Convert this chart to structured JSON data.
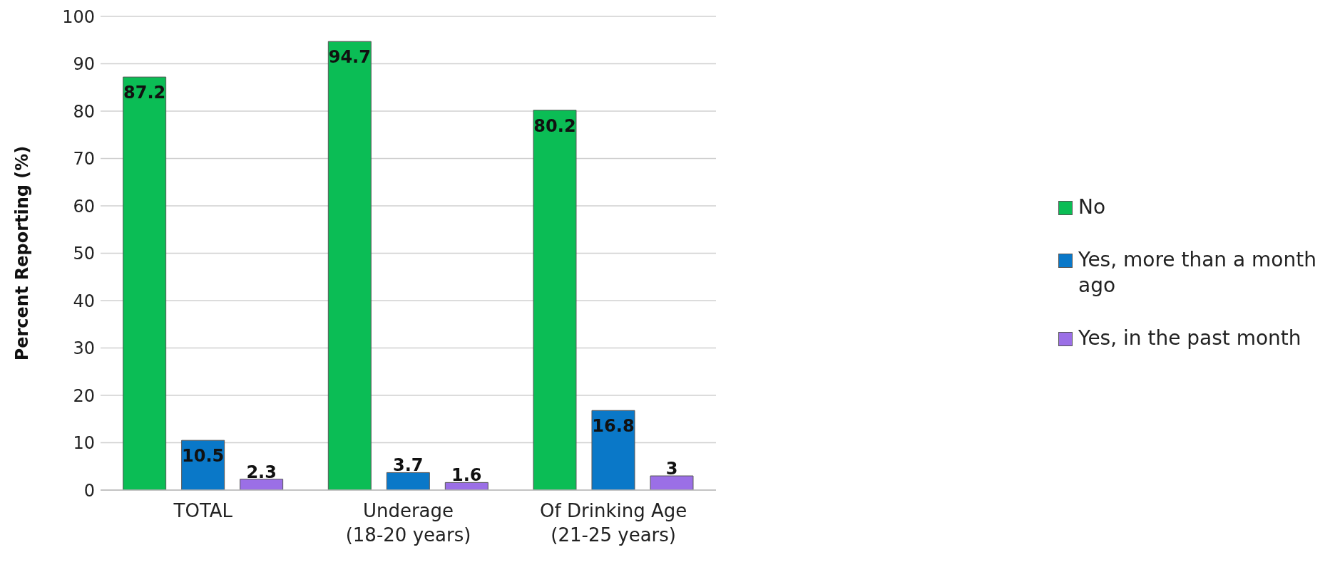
{
  "chart_data": {
    "type": "bar",
    "ylabel": "Percent Reporting (%)",
    "categories": [
      "TOTAL",
      "Underage (18-20 years)",
      "Of Drinking Age (21-25 years)"
    ],
    "series": [
      {
        "name": "No",
        "color": "#0bbd55",
        "values": [
          87.2,
          94.7,
          80.2
        ]
      },
      {
        "name": "Yes, more than a month ago",
        "color": "#0a78c8",
        "values": [
          10.5,
          3.7,
          16.8
        ]
      },
      {
        "name": "Yes, in the past month",
        "color": "#9b6fe6",
        "values": [
          2.3,
          1.6,
          3
        ]
      }
    ],
    "ylim": [
      0,
      100
    ],
    "yticks": [
      0,
      10,
      20,
      30,
      40,
      50,
      60,
      70,
      80,
      90,
      100
    ],
    "grid": "y",
    "legend": "right",
    "data_labels": true
  }
}
